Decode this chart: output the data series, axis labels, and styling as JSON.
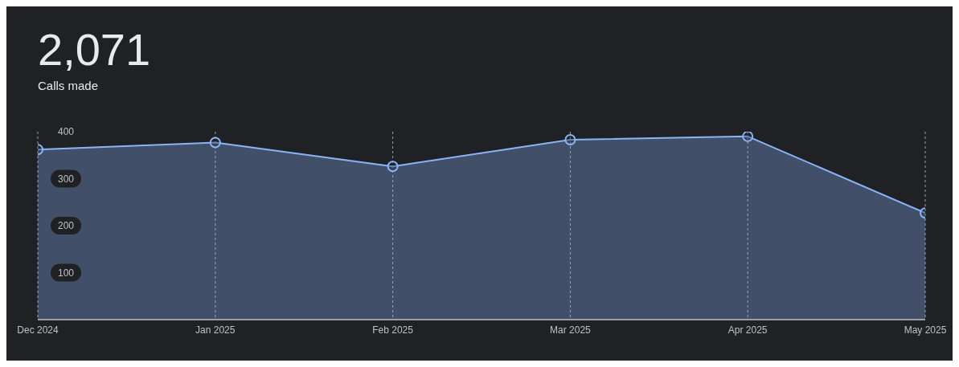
{
  "chart_data": {
    "type": "area",
    "title": "2,071",
    "subtitle": "Calls made",
    "categories": [
      "Dec 2024",
      "Jan 2025",
      "Feb 2025",
      "Mar 2025",
      "Apr 2025",
      "May 2025"
    ],
    "series": [
      {
        "color": "#8ab4f8",
        "values": [
          362,
          377,
          326,
          383,
          390,
          227
        ]
      }
    ],
    "ylim": [
      0,
      400
    ],
    "yticks": [
      100,
      200,
      300,
      400
    ],
    "grid": "x",
    "marker": "circle",
    "line_style": "solid"
  }
}
